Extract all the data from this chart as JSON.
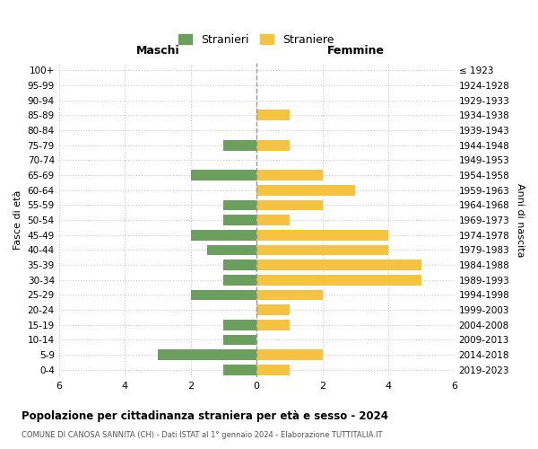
{
  "age_groups": [
    "100+",
    "95-99",
    "90-94",
    "85-89",
    "80-84",
    "75-79",
    "70-74",
    "65-69",
    "60-64",
    "55-59",
    "50-54",
    "45-49",
    "40-44",
    "35-39",
    "30-34",
    "25-29",
    "20-24",
    "15-19",
    "10-14",
    "5-9",
    "0-4"
  ],
  "birth_years": [
    "≤ 1923",
    "1924-1928",
    "1929-1933",
    "1934-1938",
    "1939-1943",
    "1944-1948",
    "1949-1953",
    "1954-1958",
    "1959-1963",
    "1964-1968",
    "1969-1973",
    "1974-1978",
    "1979-1983",
    "1984-1988",
    "1989-1993",
    "1994-1998",
    "1999-2003",
    "2004-2008",
    "2009-2013",
    "2014-2018",
    "2019-2023"
  ],
  "males": [
    0,
    0,
    0,
    0,
    0,
    1,
    0,
    2,
    0,
    1,
    1,
    2,
    1.5,
    1,
    1,
    2,
    0,
    1,
    1,
    3,
    1
  ],
  "females": [
    0,
    0,
    0,
    1,
    0,
    1,
    0,
    2,
    3,
    2,
    1,
    4,
    4,
    5,
    5,
    2,
    1,
    1,
    0,
    2,
    1
  ],
  "male_color": "#6a9f5e",
  "female_color": "#f5c242",
  "grid_color": "#cccccc",
  "title": "Popolazione per cittadinanza straniera per età e sesso - 2024",
  "subtitle": "COMUNE DI CANOSA SANNITA (CH) - Dati ISTAT al 1° gennaio 2024 - Elaborazione TUTTITALIA.IT",
  "ylabel_left": "Fasce di età",
  "ylabel_right": "Anni di nascita",
  "xlabel_left": "Maschi",
  "xlabel_right": "Femmine",
  "legend_male": "Stranieri",
  "legend_female": "Straniere",
  "xlim": 6,
  "dashed_line_color": "#999999"
}
